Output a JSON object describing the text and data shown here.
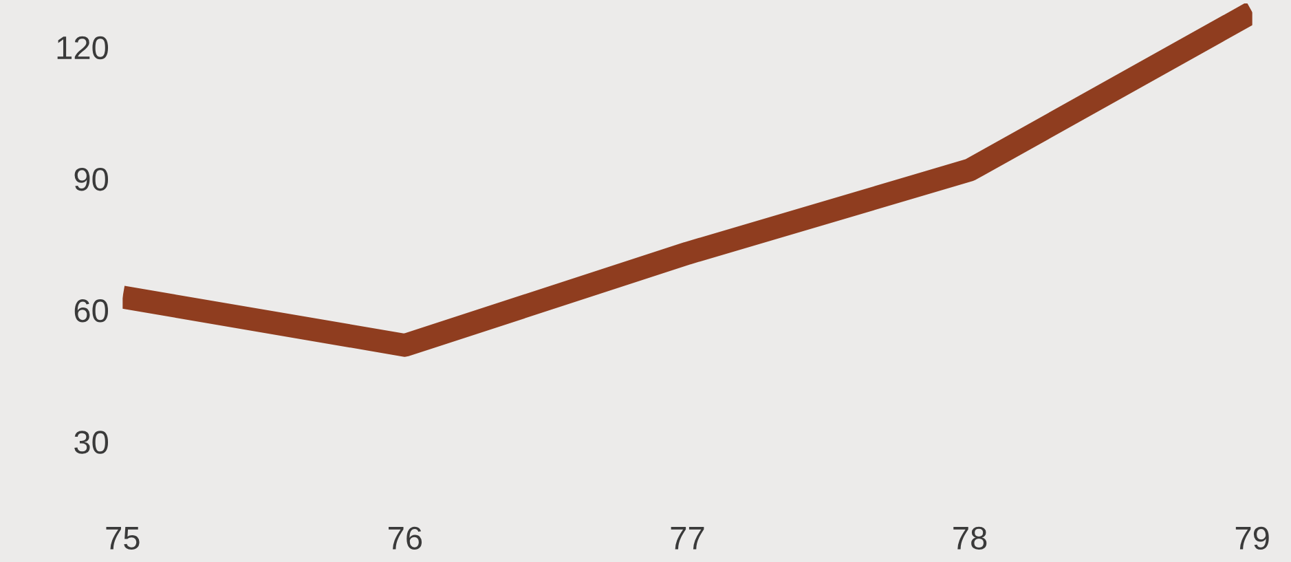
{
  "chart_data": {
    "type": "line",
    "x": [
      75,
      76,
      77,
      78,
      79
    ],
    "series": [
      {
        "color": "#8f3d1f",
        "values": [
          63,
          52,
          73,
          92,
          128
        ]
      }
    ],
    "xlim": [
      75,
      79
    ],
    "ylim": [
      30,
      130
    ],
    "xticks": [
      75,
      76,
      77,
      78,
      79
    ],
    "yticks": [
      30,
      60,
      90,
      120
    ],
    "grid": false,
    "marker": "none",
    "line_style": "solid"
  }
}
